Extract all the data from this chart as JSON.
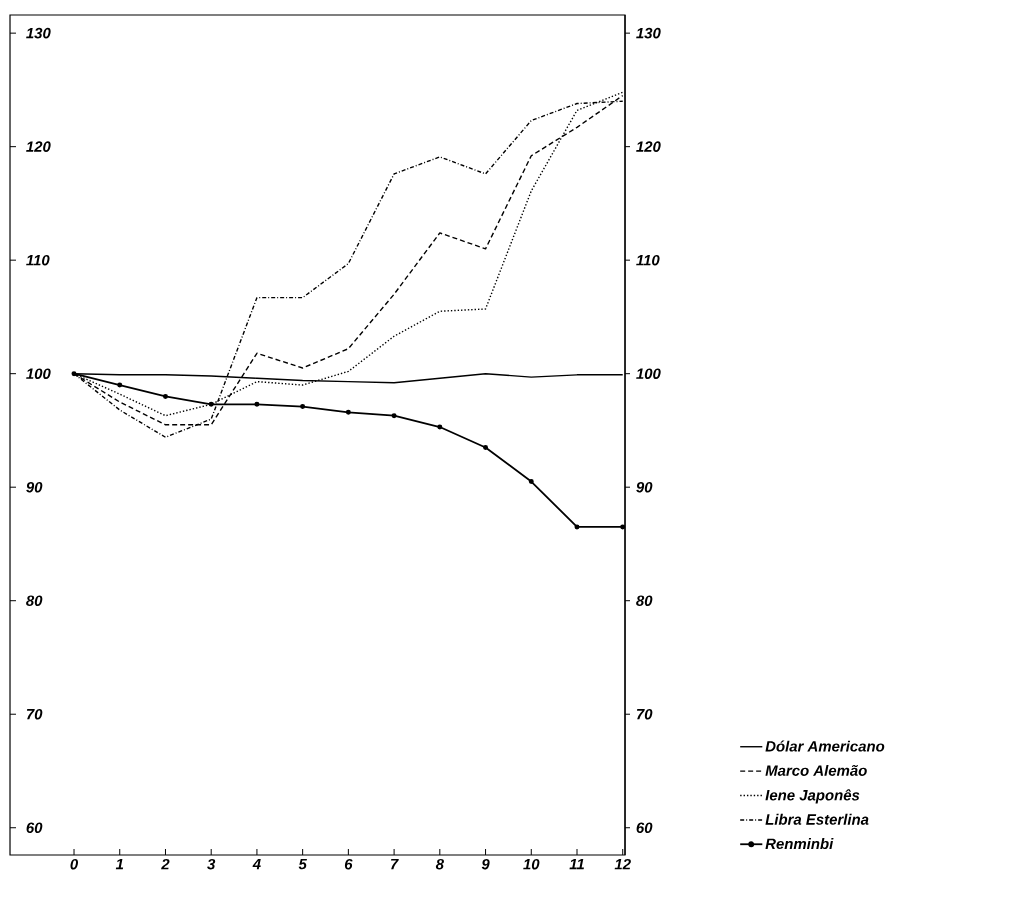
{
  "chart_data": {
    "type": "line",
    "x": [
      0,
      1,
      2,
      3,
      4,
      5,
      6,
      7,
      8,
      9,
      10,
      11,
      12
    ],
    "xlim": [
      -1.4,
      12.05
    ],
    "xticks": [
      0,
      1,
      2,
      3,
      4,
      5,
      6,
      7,
      8,
      9,
      10,
      11,
      12
    ],
    "ylim": [
      57.6,
      131.6
    ],
    "yticks": [
      60,
      70,
      80,
      90,
      100,
      110,
      120,
      130
    ],
    "y2lim": [
      57.6,
      131.6
    ],
    "y2ticks": [
      60,
      70,
      80,
      90,
      100,
      110,
      120,
      130
    ],
    "legend": "bottom right",
    "grid": false,
    "series": [
      {
        "name": "Dólar Americano",
        "color": "#000000",
        "line_style": "solid",
        "values": [
          100,
          99.9,
          99.9,
          99.8,
          99.6,
          99.4,
          99.3,
          99.2,
          99.6,
          100.0,
          99.7,
          99.9,
          99.9
        ]
      },
      {
        "name": "Marco Alemão",
        "color": "#000000",
        "line_style": "dashed",
        "values": [
          100,
          97.5,
          95.5,
          95.5,
          101.8,
          100.5,
          102.2,
          107,
          112.4,
          111.0,
          119.2,
          121.7,
          124.5
        ]
      },
      {
        "name": "Iene Japonês",
        "color": "#000000",
        "line_style": "dotted",
        "values": [
          100,
          98.2,
          96.3,
          97.3,
          99.3,
          99.0,
          100.2,
          103.3,
          105.5,
          105.7,
          116.1,
          123.2,
          124.8
        ]
      },
      {
        "name": "Libra Esterlina",
        "color": "#000000",
        "line_style": "dashdot",
        "values": [
          100,
          96.8,
          94.4,
          96,
          106.7,
          106.7,
          109.7,
          117.6,
          119.1,
          117.6,
          122.3,
          123.8,
          124
        ]
      },
      {
        "name": "Renminbi",
        "color": "#000000",
        "line_style": "solid",
        "marker": "circle",
        "values": [
          100,
          99,
          98,
          97.3,
          97.3,
          97.1,
          96.6,
          96.3,
          95.3,
          93.5,
          90.5,
          86.5,
          86.5
        ]
      }
    ]
  }
}
